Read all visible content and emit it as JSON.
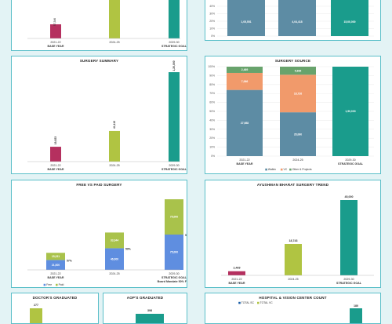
{
  "colors": {
    "maroon": "#b5305f",
    "olive": "#b0c442",
    "teal": "#1a9c8c",
    "steel": "#5d8ca4",
    "salmon": "#f19a6b",
    "green": "#68a36c",
    "royal": "#5f8ee0",
    "lime": "#a9c24b",
    "title": "#222222",
    "border": "#5bbfc9",
    "background": "#e3f3f5"
  },
  "chart_data": [
    {
      "id": "top-left",
      "type": "bar",
      "title": "",
      "categories": [
        [
          "2021-22",
          "BASE YEAR"
        ],
        [
          "2024-25"
        ],
        [
          "2029-30",
          "STRATEGIC GOAL"
        ]
      ],
      "values": [
        57346,
        null,
        null
      ],
      "labels": [
        "57,346",
        "",
        ""
      ],
      "colors": [
        "#b5305f",
        "#b0c442",
        "#1a9c8c"
      ],
      "legend": []
    },
    {
      "id": "top-right",
      "type": "bar",
      "stacked_percent": true,
      "title": "",
      "categories": [
        [
          "2021-22",
          "BASE YEAR"
        ],
        [
          "2024-25"
        ],
        [
          "2029-30",
          "STRATEGIC GOAL"
        ]
      ],
      "yticks": [
        "0%",
        "10%",
        "20%",
        "30%",
        "40%",
        "50%"
      ],
      "series": [
        {
          "name": "Walkin",
          "color": "#5d8ca4",
          "labels": [
            "1,05,551",
            "4,04,418",
            "15,00,000"
          ]
        },
        {
          "name": "VC",
          "color": "#f19a6b",
          "labels": [
            "",
            "",
            ""
          ]
        },
        {
          "name": "Other & Projects",
          "color": "#68a36c",
          "labels": [
            "",
            "",
            ""
          ]
        }
      ],
      "legend": [
        "Walkin",
        "VC",
        "Other & Projects"
      ]
    },
    {
      "id": "surgery-summary",
      "type": "bar",
      "title": "SURGERY SUMMARY",
      "categories": [
        [
          "2021-22",
          "BASE YEAR"
        ],
        [
          "2024-25"
        ],
        [
          "2029-30",
          "STRATEGIC GOAL"
        ]
      ],
      "values": [
        19923,
        41112,
        120000
      ],
      "labels": [
        "19,923",
        "41,112",
        "1,20,000"
      ],
      "colors": [
        "#b5305f",
        "#b0c442",
        "#1a9c8c"
      ],
      "ylim": [
        0,
        120000
      ]
    },
    {
      "id": "surgery-source",
      "type": "bar",
      "stacked_percent": true,
      "title": "SURGERY SOURCE",
      "categories": [
        [
          "2021-22",
          "BASE YEAR"
        ],
        [
          "2024-25"
        ],
        [
          "2029-30",
          "STRATEGIC GOAL"
        ]
      ],
      "yticks": [
        "0%",
        "10%",
        "20%",
        "30%",
        "40%",
        "50%",
        "60%",
        "70%",
        "80%",
        "90%",
        "100%"
      ],
      "series": [
        {
          "name": "Walkin",
          "color": "#5d8ca4",
          "values": [
            0.74,
            0.49,
            1.0
          ],
          "labels": [
            "27,988",
            "35,060",
            "1,50,000"
          ]
        },
        {
          "name": "VC",
          "color": "#f19a6b",
          "values": [
            0.19,
            0.42,
            0.0
          ],
          "labels": [
            "7,066",
            "18,726",
            ""
          ]
        },
        {
          "name": "Other & Projects",
          "color": "#68a36c",
          "values": [
            0.07,
            0.09,
            0.0
          ],
          "labels": [
            "2,469",
            "5,836",
            ""
          ]
        }
      ],
      "legend": [
        "Walkin",
        "VC",
        "Other & Projects"
      ]
    },
    {
      "id": "free-vs-paid",
      "type": "bar",
      "stacked": true,
      "title": "FREE VS PAID SURGERY",
      "categories": [
        [
          "2021-22",
          "BASE YEAR"
        ],
        [
          "2024-25"
        ],
        [
          "2029-30",
          "STRATEGIC GOAL",
          "Board Mandate 50% Free"
        ]
      ],
      "series": [
        {
          "name": "Free",
          "color": "#5f8ee0",
          "values": [
            21000,
            46000,
            75000
          ],
          "labels": [
            "21,000",
            "46,000",
            "75,000"
          ]
        },
        {
          "name": "Paid",
          "color": "#a9c24b",
          "values": [
            15231,
            33344,
            75000
          ],
          "labels": [
            "15,231",
            "33,344",
            "75,000"
          ]
        }
      ],
      "side_labels": [
        "57%",
        "59%",
        "50%"
      ],
      "ylim": [
        0,
        160000
      ],
      "legend": [
        "Free",
        "Paid"
      ]
    },
    {
      "id": "ayushman",
      "type": "bar",
      "title": "AYUSHMAN BHARAT SURGERY TREND",
      "categories": [
        [
          "2021-22",
          "BASE YEAR"
        ],
        [
          "2024-25"
        ],
        [
          "2029-30",
          "STRATEGIC GOAL"
        ]
      ],
      "values": [
        2469,
        18743,
        45000
      ],
      "labels": [
        "2,469",
        "18,743",
        "45,000"
      ],
      "colors": [
        "#b5305f",
        "#b0c442",
        "#1a9c8c"
      ],
      "ylim": [
        0,
        45000
      ]
    },
    {
      "id": "doctors",
      "type": "bar",
      "title": "DOCTOR'S GRADUATED",
      "values": [
        277
      ],
      "labels": [
        "277"
      ],
      "colors": [
        "#b0c442"
      ]
    },
    {
      "id": "aop",
      "type": "bar",
      "title": "AOP'S GRADUATED",
      "values": [
        398
      ],
      "labels": [
        "398"
      ],
      "colors": [
        "#1a9c8c"
      ]
    },
    {
      "id": "hvc",
      "type": "bar",
      "title": "HOSPITAL & VISION CENTER COUNT",
      "values": [
        180
      ],
      "labels": [
        "180"
      ],
      "colors": [
        "#1a9c8c"
      ],
      "legend": [
        "TOTAL SC",
        "TOTAL VC"
      ],
      "legend_colors": [
        "#1a5fa8",
        "#b0c442"
      ]
    }
  ]
}
